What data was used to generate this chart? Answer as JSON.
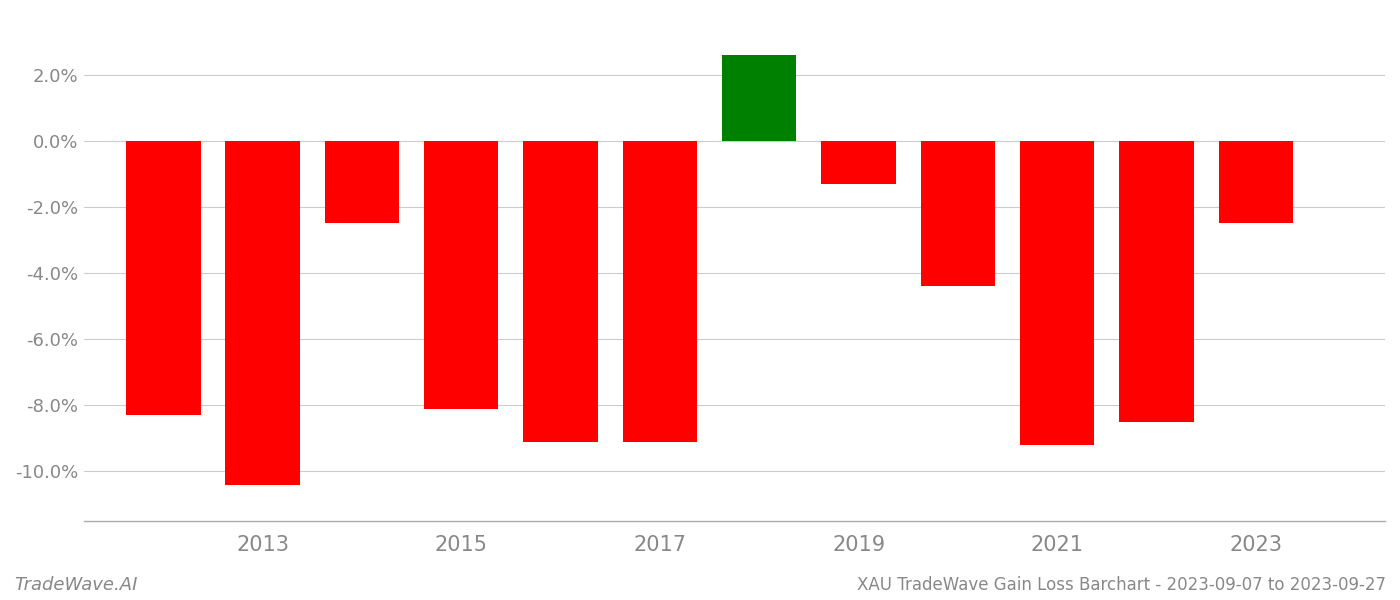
{
  "years": [
    2012,
    2013,
    2014,
    2015,
    2016,
    2017,
    2018,
    2019,
    2020,
    2021,
    2022,
    2023
  ],
  "values": [
    -0.083,
    -0.104,
    -0.025,
    -0.081,
    -0.091,
    -0.091,
    0.026,
    -0.013,
    -0.044,
    -0.092,
    -0.085,
    -0.025
  ],
  "bar_color_positive": "#008000",
  "bar_color_negative": "#ff0000",
  "title": "XAU TradeWave Gain Loss Barchart - 2023-09-07 to 2023-09-27",
  "watermark": "TradeWave.AI",
  "ylim": [
    -0.115,
    0.038
  ],
  "ytick_values": [
    0.02,
    0.0,
    -0.02,
    -0.04,
    -0.06,
    -0.08,
    -0.1
  ],
  "grid_color": "#cccccc",
  "background_color": "#ffffff",
  "spine_color": "#aaaaaa",
  "tick_label_color": "#888888",
  "bar_width": 0.75,
  "xlim_left": 2011.2,
  "xlim_right": 2024.3,
  "xtick_positions": [
    2013,
    2015,
    2017,
    2019,
    2021,
    2023
  ],
  "xtick_fontsize": 15,
  "ytick_fontsize": 13,
  "watermark_fontsize": 13,
  "title_fontsize": 12
}
